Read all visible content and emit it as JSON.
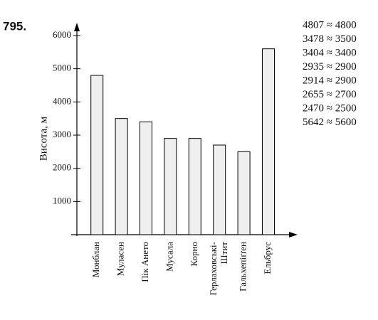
{
  "problem_number": "795.",
  "chart_data": {
    "type": "bar",
    "y_label": "Висота, м",
    "categories": [
      "Монблан",
      "Муласен",
      "Пік Ането",
      "Мусала",
      "Корно",
      "Герлаховські-Штит",
      "Гальхепіґґен",
      "Ельбрус"
    ],
    "values": [
      4800,
      3500,
      3400,
      2900,
      2900,
      2700,
      2500,
      5600
    ],
    "color": "#efefef",
    "ylim": [
      0,
      6000
    ],
    "yticks": [
      1000,
      2000,
      3000,
      4000,
      5000,
      6000
    ],
    "annotations": [
      "4807 ≈ 4800",
      "3478 ≈ 3500",
      "3404 ≈ 3400",
      "2935 ≈ 2900",
      "2914 ≈ 2900",
      "2655 ≈ 2700",
      "2470 ≈ 2500",
      "5642 ≈ 5600"
    ]
  }
}
